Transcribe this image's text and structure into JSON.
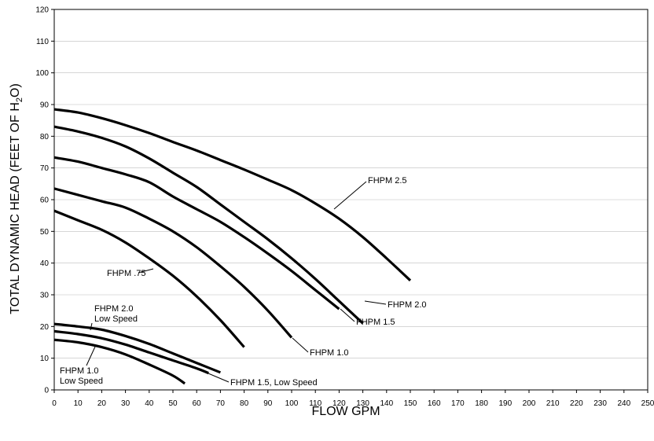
{
  "chart_data": {
    "type": "line",
    "xlabel": "FLOW GPM",
    "ylabel_main": "TOTAL DYNAMIC HEAD (FEET OF H",
    "ylabel_sub": "2",
    "ylabel_end": "O)",
    "xlim": [
      0,
      250
    ],
    "ylim": [
      0,
      120
    ],
    "x_ticks": [
      0,
      10,
      20,
      30,
      40,
      50,
      60,
      70,
      80,
      90,
      100,
      110,
      120,
      130,
      140,
      150,
      160,
      170,
      180,
      190,
      200,
      210,
      220,
      230,
      240,
      250
    ],
    "y_ticks": [
      0,
      10,
      20,
      30,
      40,
      50,
      60,
      70,
      80,
      90,
      100,
      110,
      120
    ],
    "grid": true,
    "series": [
      {
        "name": "FHPM 2.5",
        "x": [
          0,
          10,
          20,
          30,
          40,
          50,
          60,
          70,
          80,
          90,
          100,
          110,
          120,
          130,
          140,
          150
        ],
        "y": [
          88.5,
          87.5,
          85.7,
          83.5,
          81,
          78.2,
          75.5,
          72.5,
          69.5,
          66.3,
          63,
          58.8,
          54,
          48.2,
          41.5,
          34.5
        ]
      },
      {
        "name": "FHPM 2.0",
        "x": [
          0,
          10,
          20,
          30,
          40,
          50,
          60,
          70,
          80,
          90,
          100,
          110,
          120,
          130
        ],
        "y": [
          83,
          81.5,
          79.5,
          76.8,
          73,
          68.5,
          64,
          58.5,
          53,
          47.5,
          41.5,
          35,
          28,
          21
        ]
      },
      {
        "name": "FHPM 1.5",
        "x": [
          0,
          10,
          20,
          30,
          40,
          50,
          60,
          70,
          80,
          90,
          100,
          110,
          120
        ],
        "y": [
          73.3,
          72,
          70,
          68,
          65.5,
          61,
          57,
          53,
          48.2,
          43,
          37.5,
          31.5,
          25.5
        ]
      },
      {
        "name": "FHPM 1.0",
        "x": [
          0,
          10,
          20,
          30,
          40,
          50,
          60,
          70,
          80,
          90,
          100
        ],
        "y": [
          63.5,
          61.5,
          59.5,
          57.5,
          54,
          50,
          45,
          39,
          32.5,
          25,
          16.5
        ]
      },
      {
        "name": "FHPM .75",
        "x": [
          0,
          10,
          20,
          30,
          40,
          50,
          60,
          70,
          80
        ],
        "y": [
          56.5,
          53.5,
          50.5,
          46.5,
          41.5,
          36,
          29.5,
          22,
          13.5
        ]
      },
      {
        "name": "FHPM 2.0 Low Speed",
        "x": [
          0,
          10,
          20,
          30,
          40,
          50,
          60,
          70
        ],
        "y": [
          20.8,
          20,
          19,
          17,
          14.5,
          11.5,
          8.5,
          5.5
        ]
      },
      {
        "name": "FHPM 1.5, Low Speed",
        "x": [
          0,
          10,
          20,
          30,
          40,
          50,
          60,
          65
        ],
        "y": [
          18.5,
          17.6,
          16.3,
          14.3,
          11.8,
          9.3,
          6.8,
          5.3
        ]
      },
      {
        "name": "FHPM 1.0 Low Speed",
        "x": [
          0,
          10,
          20,
          30,
          40,
          50,
          55
        ],
        "y": [
          15.8,
          15,
          13.5,
          11.2,
          8,
          4.5,
          2
        ]
      }
    ],
    "annotations": [
      {
        "line1": "FHPM 2.5",
        "line2": ""
      },
      {
        "line1": "FHPM 2.0",
        "line2": ""
      },
      {
        "line1": "FHPM 1.5",
        "line2": ""
      },
      {
        "line1": "FHPM 1.0",
        "line2": ""
      },
      {
        "line1": "FHPM .75",
        "line2": ""
      },
      {
        "line1": "FHPM 2.0",
        "line2": "Low Speed"
      },
      {
        "line1": "FHPM 1.5, Low Speed",
        "line2": ""
      },
      {
        "line1": "FHPM 1.0",
        "line2": "Low Speed"
      }
    ]
  }
}
